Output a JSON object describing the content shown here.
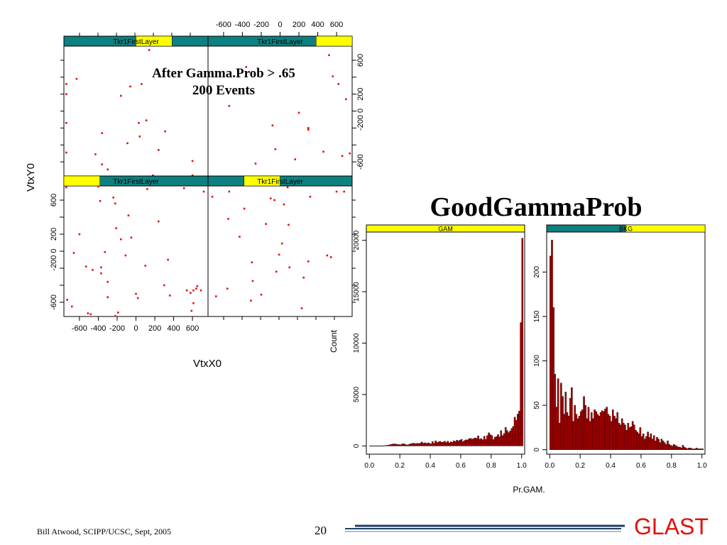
{
  "slide": {
    "title": "GoodGammaProb",
    "annotation_line1": "After Gamma.Prob > .65",
    "annotation_line2": "200 Events",
    "footer": "Bill Atwood,  SCIPP/UCSC, Sept, 2005",
    "page_number": "20",
    "logo": "GLAST",
    "colors": {
      "strip_teal": "#0d8080",
      "strip_yellow": "#ffff00",
      "points": "#e0120f",
      "bars": "#b30000",
      "logo": "#e0120f",
      "rule": "#1f3f66"
    }
  },
  "chart_data": [
    {
      "type": "scatter",
      "xlabel": "VtxX0",
      "ylabel": "VtxY0",
      "strip_label": "Tkr1FirstLayer",
      "xlim": [
        -750,
        750
      ],
      "ylim": [
        -750,
        750
      ],
      "xticks": [
        "-600",
        "-400",
        "-200",
        "0",
        "200",
        "400",
        "600"
      ],
      "yticks": [
        "-600",
        "-200 0",
        "200",
        "600"
      ],
      "panels": [
        {
          "position": "top-left",
          "strip_yellow_range": [
            0.5,
            0.75
          ],
          "points": [
            [
              -740,
              320
            ],
            [
              -630,
              380
            ],
            [
              -740,
              200
            ],
            [
              -740,
              -140
            ],
            [
              -740,
              -490
            ],
            [
              -430,
              -510
            ],
            [
              -360,
              -260
            ],
            [
              -360,
              -630
            ],
            [
              -300,
              -690
            ],
            [
              -160,
              180
            ],
            [
              -90,
              -380
            ],
            [
              -60,
              290
            ],
            [
              30,
              -140
            ],
            [
              40,
              -300
            ],
            [
              60,
              320
            ],
            [
              110,
              -110
            ],
            [
              140,
              -820
            ],
            [
              180,
              -760
            ],
            [
              240,
              -460
            ],
            [
              310,
              -240
            ],
            [
              490,
              -780
            ],
            [
              600,
              -590
            ],
            [
              600,
              -760
            ],
            [
              140,
              720
            ]
          ]
        },
        {
          "position": "top-right",
          "strip_yellow_range": [
            0.75,
            1.0
          ],
          "points": [
            [
              -720,
              440
            ],
            [
              -540,
              60
            ],
            [
              -360,
              520
            ],
            [
              -260,
              -620
            ],
            [
              -80,
              -170
            ],
            [
              -50,
              -450
            ],
            [
              160,
              -570
            ],
            [
              200,
              -20
            ],
            [
              300,
              -220
            ],
            [
              300,
              -200
            ],
            [
              460,
              -480
            ],
            [
              520,
              660
            ],
            [
              560,
              410
            ],
            [
              620,
              320
            ],
            [
              700,
              140
            ],
            [
              660,
              -530
            ],
            [
              740,
              -500
            ]
          ]
        },
        {
          "position": "bottom-left",
          "strip_yellow_range": [
            0.0,
            0.25
          ],
          "points": [
            [
              -740,
              750
            ],
            [
              -730,
              -570
            ],
            [
              -680,
              -650
            ],
            [
              -660,
              -20
            ],
            [
              -600,
              200
            ],
            [
              -530,
              -180
            ],
            [
              -510,
              -730
            ],
            [
              -480,
              -740
            ],
            [
              -460,
              -220
            ],
            [
              -400,
              760
            ],
            [
              -380,
              590
            ],
            [
              -370,
              -190
            ],
            [
              -370,
              -260
            ],
            [
              -330,
              -10
            ],
            [
              -300,
              -540
            ],
            [
              -300,
              -360
            ],
            [
              -240,
              630
            ],
            [
              -220,
              560
            ],
            [
              -220,
              -760
            ],
            [
              -210,
              270
            ],
            [
              -190,
              -720
            ],
            [
              -160,
              140
            ],
            [
              -110,
              -50
            ],
            [
              -80,
              420
            ],
            [
              -50,
              160
            ],
            [
              0,
              -500
            ],
            [
              20,
              -550
            ],
            [
              100,
              -170
            ],
            [
              120,
              730
            ],
            [
              240,
              350
            ],
            [
              300,
              -400
            ],
            [
              340,
              -100
            ],
            [
              360,
              -520
            ],
            [
              510,
              740
            ],
            [
              540,
              -460
            ],
            [
              580,
              -490
            ],
            [
              590,
              -700
            ],
            [
              610,
              -460
            ],
            [
              610,
              -610
            ],
            [
              640,
              -440
            ],
            [
              650,
              -410
            ],
            [
              690,
              -460
            ],
            [
              720,
              700
            ]
          ]
        },
        {
          "position": "bottom-right",
          "strip_yellow_range": [
            0.25,
            0.5
          ],
          "points": [
            [
              -720,
              640
            ],
            [
              -680,
              -530
            ],
            [
              -560,
              -440
            ],
            [
              -550,
              380
            ],
            [
              -540,
              700
            ],
            [
              -430,
              170
            ],
            [
              -380,
              500
            ],
            [
              -300,
              -130
            ],
            [
              -310,
              -580
            ],
            [
              -290,
              -350
            ],
            [
              -200,
              -510
            ],
            [
              -150,
              320
            ],
            [
              -100,
              620
            ],
            [
              -60,
              600
            ],
            [
              -40,
              -240
            ],
            [
              -10,
              -40
            ],
            [
              20,
              90
            ],
            [
              40,
              550
            ],
            [
              80,
              750
            ],
            [
              90,
              310
            ],
            [
              100,
              -190
            ],
            [
              230,
              -670
            ],
            [
              250,
              -310
            ],
            [
              300,
              -120
            ],
            [
              320,
              640
            ],
            [
              500,
              -50
            ],
            [
              540,
              -70
            ],
            [
              600,
              700
            ],
            [
              680,
              700
            ]
          ]
        }
      ]
    },
    {
      "type": "bar",
      "panel_label": "GAM",
      "xlabel": "Pr.GAM.",
      "ylabel": "Count",
      "xlim": [
        -0.02,
        1.02
      ],
      "ylim": [
        -800,
        20800
      ],
      "xticks": [
        "0.0",
        "0.2",
        "0.4",
        "0.6",
        "0.8",
        "1.0"
      ],
      "yticks": [
        "0",
        "5000",
        "10000",
        "15000",
        "20000"
      ],
      "bin_width": 0.01,
      "values": [
        5,
        10,
        5,
        10,
        15,
        10,
        10,
        15,
        20,
        25,
        40,
        60,
        80,
        120,
        150,
        180,
        200,
        170,
        150,
        130,
        120,
        180,
        210,
        150,
        100,
        110,
        180,
        220,
        260,
        250,
        210,
        260,
        220,
        290,
        380,
        260,
        310,
        240,
        300,
        250,
        200,
        420,
        260,
        500,
        330,
        400,
        450,
        350,
        380,
        450,
        330,
        460,
        300,
        400,
        360,
        500,
        420,
        560,
        470,
        560,
        640,
        420,
        520,
        600,
        580,
        700,
        740,
        660,
        720,
        780,
        740,
        980,
        650,
        720,
        590,
        950,
        640,
        1000,
        1280,
        1100,
        1000,
        620,
        850,
        900,
        1100,
        880,
        1500,
        1000,
        1200,
        1800,
        1500,
        1300,
        1450,
        1700,
        1900,
        2800,
        2500,
        3100,
        3400,
        12000,
        20200
      ]
    },
    {
      "type": "bar",
      "panel_label": "BKG",
      "xlim": [
        -0.02,
        1.02
      ],
      "ylim": [
        -5,
        245
      ],
      "xticks": [
        "0.0",
        "0.2",
        "0.4",
        "0.6",
        "0.8",
        "1.0"
      ],
      "yticks": [
        "0",
        "50",
        "100",
        "150",
        "200"
      ],
      "bin_width": 0.01,
      "values": [
        218,
        236,
        160,
        85,
        48,
        80,
        30,
        75,
        60,
        40,
        65,
        42,
        38,
        58,
        70,
        32,
        50,
        40,
        35,
        38,
        43,
        45,
        60,
        50,
        35,
        48,
        32,
        42,
        35,
        45,
        43,
        40,
        38,
        42,
        44,
        43,
        46,
        48,
        40,
        38,
        32,
        45,
        38,
        35,
        42,
        30,
        28,
        35,
        30,
        28,
        22,
        30,
        25,
        26,
        32,
        28,
        22,
        20,
        18,
        25,
        15,
        18,
        12,
        15,
        20,
        14,
        18,
        12,
        16,
        10,
        14,
        12,
        8,
        12,
        10,
        8,
        6,
        10,
        6,
        5,
        4,
        6,
        5,
        4,
        3,
        3,
        2,
        5,
        3,
        2,
        1,
        2,
        2,
        1,
        1,
        1,
        2,
        1,
        1,
        1,
        1
      ]
    }
  ]
}
